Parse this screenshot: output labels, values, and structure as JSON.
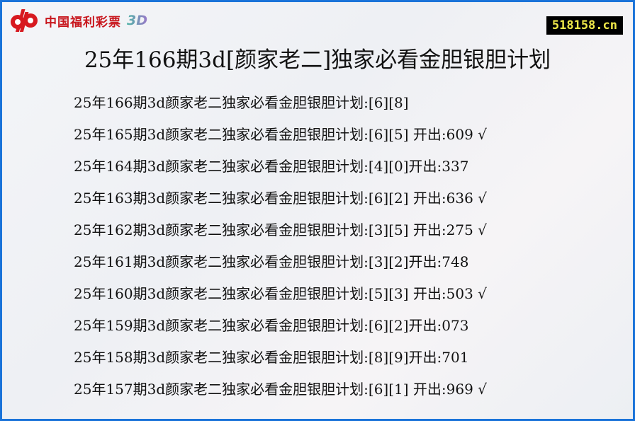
{
  "logo": {
    "text": "中国福利彩票",
    "suffix": "3D",
    "brand_color": "#c8161d"
  },
  "site": "518158.cn",
  "title": "25年166期3d[颜家老二]独家必看金胆银胆计划",
  "rows": [
    "25年166期3d颜家老二独家必看金胆银胆计划:[6][8]",
    "25年165期3d颜家老二独家必看金胆银胆计划:[6][5] 开出:609 √",
    "25年164期3d颜家老二独家必看金胆银胆计划:[4][0]开出:337",
    "25年163期3d颜家老二独家必看金胆银胆计划:[6][2] 开出:636 √",
    "25年162期3d颜家老二独家必看金胆银胆计划:[3][5] 开出:275 √",
    "25年161期3d颜家老二独家必看金胆银胆计划:[3][2]开出:748",
    "25年160期3d颜家老二独家必看金胆银胆计划:[5][3] 开出:503 √",
    "25年159期3d颜家老二独家必看金胆银胆计划:[6][2]开出:073",
    "25年158期3d颜家老二独家必看金胆银胆计划:[8][9]开出:701",
    "25年157期3d颜家老二独家必看金胆银胆计划:[6][1] 开出:969 √"
  ]
}
